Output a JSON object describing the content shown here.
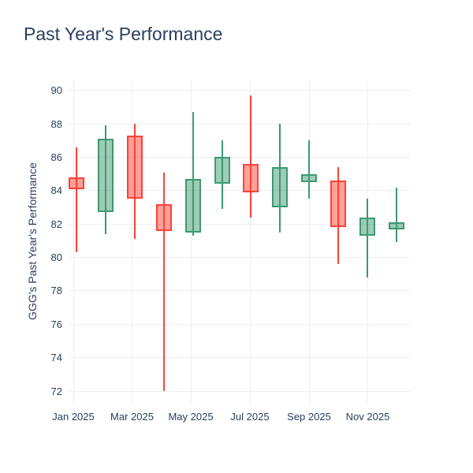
{
  "title": "Past Year's Performance",
  "chart_data": {
    "type": "candlestick",
    "title": "Past Year's Performance",
    "xlabel": "",
    "ylabel": "GGG's Past Year's Performance",
    "x_tick_labels": [
      "Jan 2025",
      "Mar 2025",
      "May 2025",
      "Jul 2025",
      "Sep 2025",
      "Nov 2025"
    ],
    "y_ticks": [
      72,
      74,
      76,
      78,
      80,
      82,
      84,
      86,
      88,
      90
    ],
    "ylim": [
      71.2,
      90.6
    ],
    "grid": true,
    "legend": false,
    "categories": [
      "Jan 2025",
      "Feb 2025",
      "Mar 2025",
      "Apr 2025",
      "May 2025",
      "Jun 2025",
      "Jul 2025",
      "Aug 2025",
      "Sep 2025",
      "Oct 2025",
      "Nov 2025",
      "Dec 2025"
    ],
    "series": [
      {
        "month": "Jan 2025",
        "open": 84.8,
        "high": 86.6,
        "low": 80.3,
        "close": 84.1,
        "direction": "down"
      },
      {
        "month": "Feb 2025",
        "open": 82.7,
        "high": 87.9,
        "low": 81.4,
        "close": 87.1,
        "direction": "up"
      },
      {
        "month": "Mar 2025",
        "open": 87.3,
        "high": 88.0,
        "low": 81.1,
        "close": 83.5,
        "direction": "down"
      },
      {
        "month": "Apr 2025",
        "open": 83.2,
        "high": 85.1,
        "low": 72.0,
        "close": 81.6,
        "direction": "down"
      },
      {
        "month": "May 2025",
        "open": 81.5,
        "high": 88.7,
        "low": 81.3,
        "close": 84.7,
        "direction": "up"
      },
      {
        "month": "Jun 2025",
        "open": 84.4,
        "high": 87.0,
        "low": 82.9,
        "close": 86.0,
        "direction": "up"
      },
      {
        "month": "Jul 2025",
        "open": 85.6,
        "high": 89.7,
        "low": 82.4,
        "close": 83.9,
        "direction": "down"
      },
      {
        "month": "Aug 2025",
        "open": 83.0,
        "high": 88.0,
        "low": 81.5,
        "close": 85.4,
        "direction": "up"
      },
      {
        "month": "Sep 2025",
        "open": 84.5,
        "high": 87.0,
        "low": 83.5,
        "close": 85.0,
        "direction": "up"
      },
      {
        "month": "Oct 2025",
        "open": 84.6,
        "high": 85.4,
        "low": 79.6,
        "close": 81.8,
        "direction": "down"
      },
      {
        "month": "Nov 2025",
        "open": 81.3,
        "high": 83.5,
        "low": 78.8,
        "close": 82.4,
        "direction": "up"
      },
      {
        "month": "Dec 2025",
        "open": 81.7,
        "high": 84.2,
        "low": 80.9,
        "close": 82.1,
        "direction": "up"
      }
    ],
    "colors": {
      "increasing_line": "#3D9970",
      "increasing_fill": "rgba(61,153,112,0.5)",
      "decreasing_line": "#FF4136",
      "decreasing_fill": "rgba(255,65,54,0.5)",
      "text": "#2a3f5f",
      "grid": "#eaeef5",
      "background": "#ffffff"
    }
  }
}
